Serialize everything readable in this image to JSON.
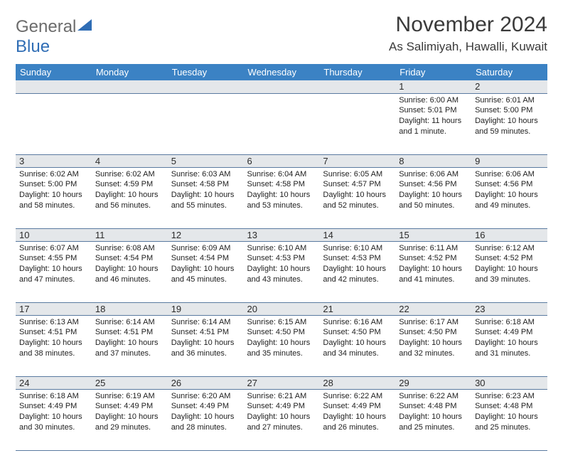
{
  "brand": {
    "part1": "General",
    "part2": "Blue",
    "text_color_1": "#6b6b6b",
    "text_color_2": "#2f6db5",
    "sail_color": "#2f6db5"
  },
  "title": "November 2024",
  "location": "As Salimiyah, Hawalli, Kuwait",
  "header_bg": "#3b82c4",
  "header_fg": "#ffffff",
  "daynum_bg": "#e4e7ea",
  "rule_color": "#5a7aa0",
  "text_color": "#222222",
  "columns": [
    "Sunday",
    "Monday",
    "Tuesday",
    "Wednesday",
    "Thursday",
    "Friday",
    "Saturday"
  ],
  "weeks": [
    [
      null,
      null,
      null,
      null,
      null,
      {
        "n": "1",
        "sr": "Sunrise: 6:00 AM",
        "ss": "Sunset: 5:01 PM",
        "dl": "Daylight: 11 hours and 1 minute."
      },
      {
        "n": "2",
        "sr": "Sunrise: 6:01 AM",
        "ss": "Sunset: 5:00 PM",
        "dl": "Daylight: 10 hours and 59 minutes."
      }
    ],
    [
      {
        "n": "3",
        "sr": "Sunrise: 6:02 AM",
        "ss": "Sunset: 5:00 PM",
        "dl": "Daylight: 10 hours and 58 minutes."
      },
      {
        "n": "4",
        "sr": "Sunrise: 6:02 AM",
        "ss": "Sunset: 4:59 PM",
        "dl": "Daylight: 10 hours and 56 minutes."
      },
      {
        "n": "5",
        "sr": "Sunrise: 6:03 AM",
        "ss": "Sunset: 4:58 PM",
        "dl": "Daylight: 10 hours and 55 minutes."
      },
      {
        "n": "6",
        "sr": "Sunrise: 6:04 AM",
        "ss": "Sunset: 4:58 PM",
        "dl": "Daylight: 10 hours and 53 minutes."
      },
      {
        "n": "7",
        "sr": "Sunrise: 6:05 AM",
        "ss": "Sunset: 4:57 PM",
        "dl": "Daylight: 10 hours and 52 minutes."
      },
      {
        "n": "8",
        "sr": "Sunrise: 6:06 AM",
        "ss": "Sunset: 4:56 PM",
        "dl": "Daylight: 10 hours and 50 minutes."
      },
      {
        "n": "9",
        "sr": "Sunrise: 6:06 AM",
        "ss": "Sunset: 4:56 PM",
        "dl": "Daylight: 10 hours and 49 minutes."
      }
    ],
    [
      {
        "n": "10",
        "sr": "Sunrise: 6:07 AM",
        "ss": "Sunset: 4:55 PM",
        "dl": "Daylight: 10 hours and 47 minutes."
      },
      {
        "n": "11",
        "sr": "Sunrise: 6:08 AM",
        "ss": "Sunset: 4:54 PM",
        "dl": "Daylight: 10 hours and 46 minutes."
      },
      {
        "n": "12",
        "sr": "Sunrise: 6:09 AM",
        "ss": "Sunset: 4:54 PM",
        "dl": "Daylight: 10 hours and 45 minutes."
      },
      {
        "n": "13",
        "sr": "Sunrise: 6:10 AM",
        "ss": "Sunset: 4:53 PM",
        "dl": "Daylight: 10 hours and 43 minutes."
      },
      {
        "n": "14",
        "sr": "Sunrise: 6:10 AM",
        "ss": "Sunset: 4:53 PM",
        "dl": "Daylight: 10 hours and 42 minutes."
      },
      {
        "n": "15",
        "sr": "Sunrise: 6:11 AM",
        "ss": "Sunset: 4:52 PM",
        "dl": "Daylight: 10 hours and 41 minutes."
      },
      {
        "n": "16",
        "sr": "Sunrise: 6:12 AM",
        "ss": "Sunset: 4:52 PM",
        "dl": "Daylight: 10 hours and 39 minutes."
      }
    ],
    [
      {
        "n": "17",
        "sr": "Sunrise: 6:13 AM",
        "ss": "Sunset: 4:51 PM",
        "dl": "Daylight: 10 hours and 38 minutes."
      },
      {
        "n": "18",
        "sr": "Sunrise: 6:14 AM",
        "ss": "Sunset: 4:51 PM",
        "dl": "Daylight: 10 hours and 37 minutes."
      },
      {
        "n": "19",
        "sr": "Sunrise: 6:14 AM",
        "ss": "Sunset: 4:51 PM",
        "dl": "Daylight: 10 hours and 36 minutes."
      },
      {
        "n": "20",
        "sr": "Sunrise: 6:15 AM",
        "ss": "Sunset: 4:50 PM",
        "dl": "Daylight: 10 hours and 35 minutes."
      },
      {
        "n": "21",
        "sr": "Sunrise: 6:16 AM",
        "ss": "Sunset: 4:50 PM",
        "dl": "Daylight: 10 hours and 34 minutes."
      },
      {
        "n": "22",
        "sr": "Sunrise: 6:17 AM",
        "ss": "Sunset: 4:50 PM",
        "dl": "Daylight: 10 hours and 32 minutes."
      },
      {
        "n": "23",
        "sr": "Sunrise: 6:18 AM",
        "ss": "Sunset: 4:49 PM",
        "dl": "Daylight: 10 hours and 31 minutes."
      }
    ],
    [
      {
        "n": "24",
        "sr": "Sunrise: 6:18 AM",
        "ss": "Sunset: 4:49 PM",
        "dl": "Daylight: 10 hours and 30 minutes."
      },
      {
        "n": "25",
        "sr": "Sunrise: 6:19 AM",
        "ss": "Sunset: 4:49 PM",
        "dl": "Daylight: 10 hours and 29 minutes."
      },
      {
        "n": "26",
        "sr": "Sunrise: 6:20 AM",
        "ss": "Sunset: 4:49 PM",
        "dl": "Daylight: 10 hours and 28 minutes."
      },
      {
        "n": "27",
        "sr": "Sunrise: 6:21 AM",
        "ss": "Sunset: 4:49 PM",
        "dl": "Daylight: 10 hours and 27 minutes."
      },
      {
        "n": "28",
        "sr": "Sunrise: 6:22 AM",
        "ss": "Sunset: 4:49 PM",
        "dl": "Daylight: 10 hours and 26 minutes."
      },
      {
        "n": "29",
        "sr": "Sunrise: 6:22 AM",
        "ss": "Sunset: 4:48 PM",
        "dl": "Daylight: 10 hours and 25 minutes."
      },
      {
        "n": "30",
        "sr": "Sunrise: 6:23 AM",
        "ss": "Sunset: 4:48 PM",
        "dl": "Daylight: 10 hours and 25 minutes."
      }
    ]
  ]
}
